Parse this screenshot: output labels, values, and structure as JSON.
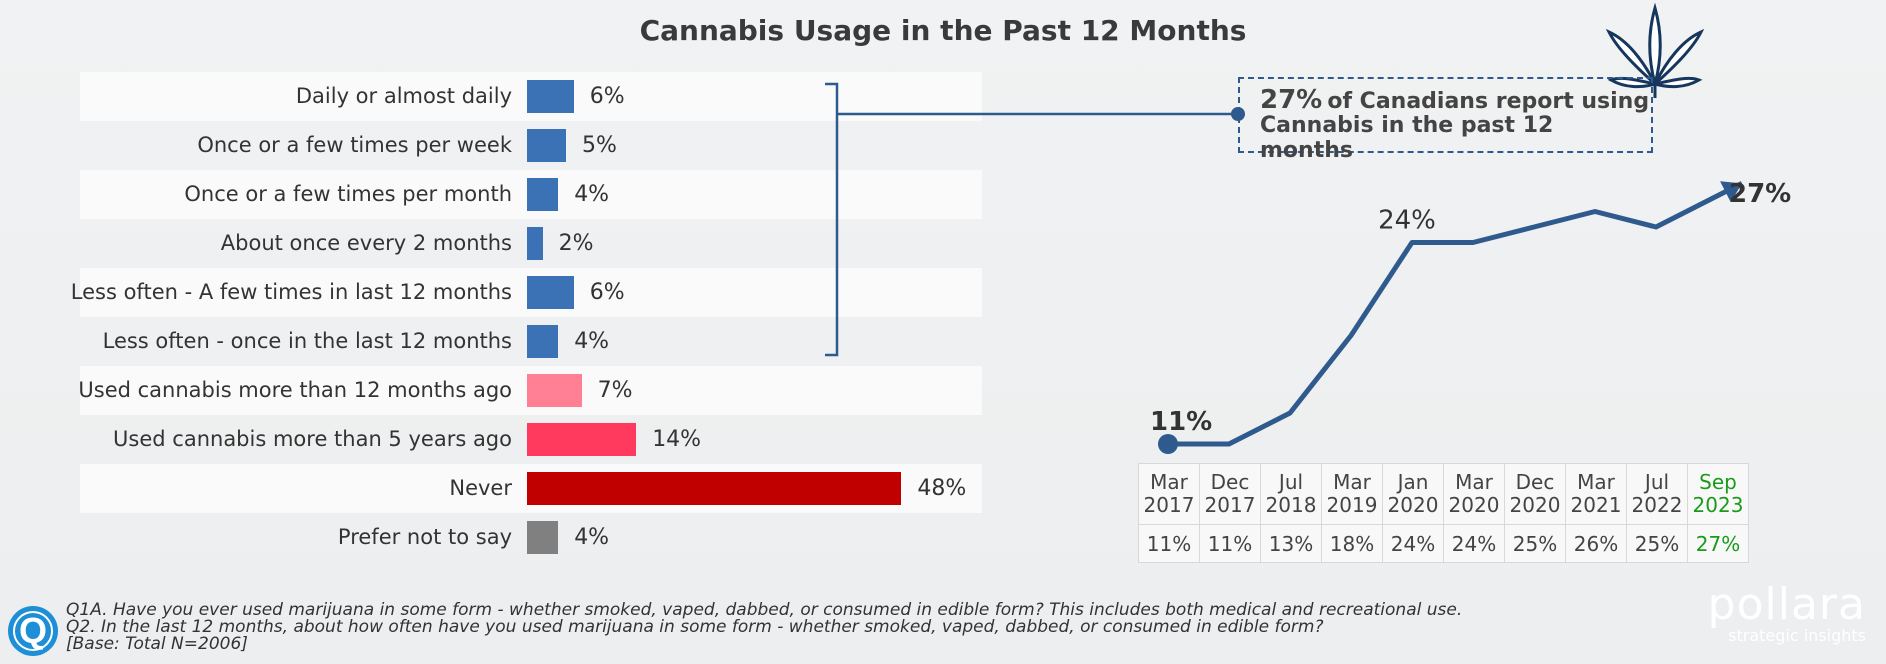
{
  "title": "Cannabis Usage in the Past 12 Months",
  "callout": {
    "highlight": "27%",
    "line1": "of Canadians report using",
    "line2": "Cannabis in the past 12 months"
  },
  "colors": {
    "blue": "#3b72b5",
    "pink": "#ff7f95",
    "red_pink": "#ff3a5e",
    "dark_red": "#c00000",
    "gray": "#808080",
    "line": "#2f5a8e",
    "green": "#1a9a1a"
  },
  "chart_data": [
    {
      "type": "bar",
      "orientation": "horizontal",
      "categories": [
        "Daily or almost daily",
        "Once or a few times per week",
        "Once or a few times per month",
        "About once every 2 months",
        "Less often - A few times in last 12 months",
        "Less often - once in the last 12 months",
        "Used cannabis more than 12 months ago",
        "Used cannabis more than 5 years ago",
        "Never",
        "Prefer not to say"
      ],
      "values": [
        6,
        5,
        4,
        2,
        6,
        4,
        7,
        14,
        48,
        4
      ],
      "value_labels": [
        "6%",
        "5%",
        "4%",
        "2%",
        "6%",
        "4%",
        "7%",
        "14%",
        "48%",
        "4%"
      ],
      "bar_colors": [
        "#3b72b5",
        "#3b72b5",
        "#3b72b5",
        "#3b72b5",
        "#3b72b5",
        "#3b72b5",
        "#ff7f95",
        "#ff3a5e",
        "#c00000",
        "#808080"
      ],
      "unit": "%"
    },
    {
      "type": "line",
      "x": [
        "Mar 2017",
        "Dec 2017",
        "Jul 2018",
        "Mar 2019",
        "Jan 2020",
        "Mar 2020",
        "Dec 2020",
        "Mar 2021",
        "Jul 2022",
        "Sep 2023"
      ],
      "x_top": [
        "Mar",
        "Dec",
        "Jul",
        "Mar",
        "Jan",
        "Mar",
        "Dec",
        "Mar",
        "Jul",
        "Sep"
      ],
      "x_bottom": [
        "2017",
        "2017",
        "2018",
        "2019",
        "2020",
        "2020",
        "2020",
        "2021",
        "2022",
        "2023"
      ],
      "values": [
        11,
        11,
        13,
        18,
        24,
        24,
        25,
        26,
        25,
        27
      ],
      "value_labels": [
        "11%",
        "11%",
        "13%",
        "18%",
        "24%",
        "24%",
        "25%",
        "26%",
        "25%",
        "27%"
      ],
      "annotations": [
        {
          "index": 0,
          "text": "11%"
        },
        {
          "index": 4,
          "text": "24%"
        },
        {
          "index": 9,
          "text": "27%"
        }
      ]
    }
  ],
  "footnotes": {
    "q1a": "Q1A. Have you ever used marijuana in some form - whether smoked, vaped, dabbed, or consumed in edible form? This includes both medical and recreational use.",
    "q2": "Q2. In the last 12 months, about how often have you used marijuana in some form - whether smoked, vaped, dabbed, or consumed in edible form?",
    "base": "[Base: Total N=2006]"
  },
  "badge": "Q",
  "logo": {
    "name": "pollara",
    "tagline": "strategic insights"
  }
}
